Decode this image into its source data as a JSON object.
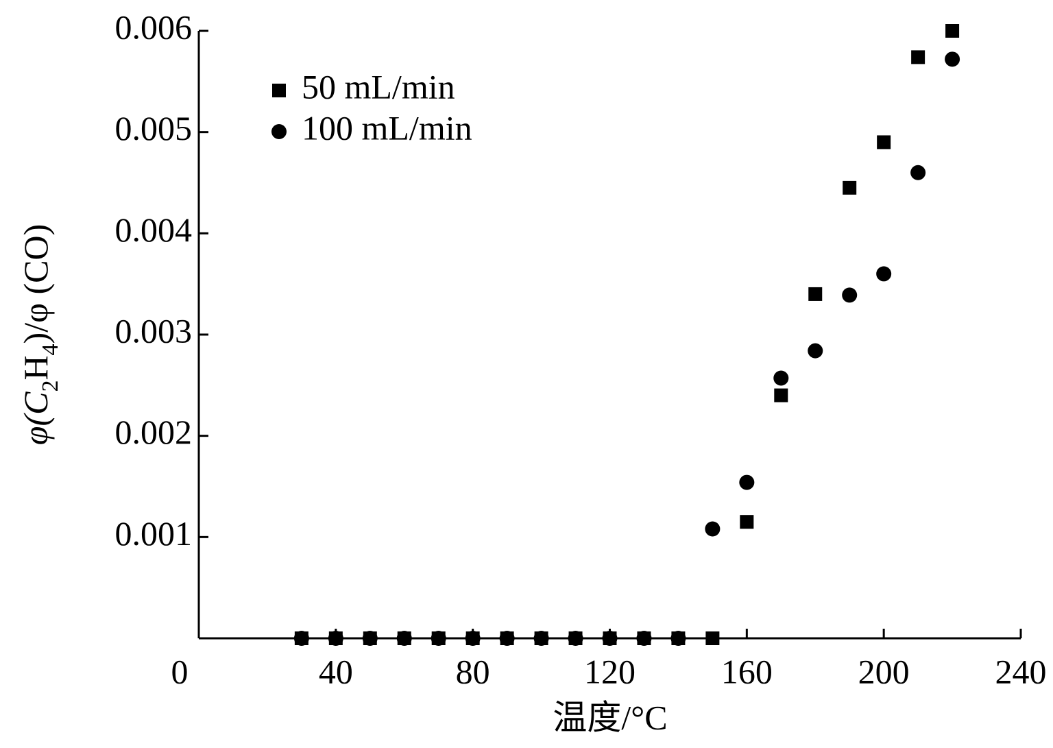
{
  "chart_data": {
    "type": "scatter",
    "x_label": "温度/°C",
    "y_label": [
      "φ(C",
      "2",
      "H",
      "4",
      ")/φ (CO)"
    ],
    "x": [
      30,
      40,
      50,
      60,
      70,
      80,
      90,
      100,
      110,
      120,
      130,
      140,
      150,
      160,
      170,
      180,
      190,
      200,
      210,
      220
    ],
    "series": [
      {
        "name": "50 mL/min",
        "color": "#000000",
        "marker": "square",
        "values": [
          0,
          0,
          0,
          0,
          0,
          0,
          0,
          0,
          0,
          0,
          0,
          0,
          0,
          0.00115,
          0.0024,
          0.0034,
          0.00445,
          0.0049,
          0.00574,
          0.006
        ]
      },
      {
        "name": "100 mL/min",
        "color": "#000000",
        "marker": "circle",
        "values": [
          0,
          0,
          0,
          0,
          0,
          0,
          0,
          0,
          0,
          0,
          0,
          0,
          0.00108,
          0.00154,
          0.00257,
          0.00284,
          0.00339,
          0.0036,
          0.0046,
          0.00572
        ]
      }
    ],
    "xlim": [
      0,
      240
    ],
    "xticks": [
      0,
      40,
      80,
      120,
      160,
      200,
      240
    ],
    "ylim": [
      0,
      0.006
    ],
    "yticks": [
      0.001,
      0.002,
      0.003,
      0.004,
      0.005,
      0.006
    ],
    "legend": "upper-left"
  }
}
